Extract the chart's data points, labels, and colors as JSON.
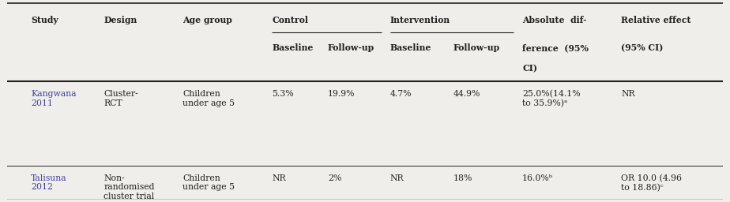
{
  "bg_color": "#f0eeeb",
  "text_color": "#231f20",
  "study_color": "#4040a0",
  "figsize": [
    9.24,
    2.56
  ],
  "dpi": 100,
  "cols": {
    "study": 0.033,
    "design": 0.135,
    "age": 0.245,
    "ctrl_base": 0.37,
    "ctrl_follow": 0.448,
    "int_base": 0.535,
    "int_follow": 0.623,
    "absolute": 0.72,
    "relative": 0.858
  },
  "rows": [
    {
      "study": "Kangwana\n2011",
      "design": "Cluster-\nRCT",
      "age": "Children\nunder age 5",
      "ctrl_baseline": "5.3%",
      "ctrl_followup": "19.9%",
      "int_baseline": "4.7%",
      "int_followup": "44.9%",
      "absolute": "25.0%(14.1%\nto 35.9%)ᵃ",
      "relative": "NR"
    },
    {
      "study": "Talisuna\n2012",
      "design": "Non-\nrandomised\ncluster trial",
      "age": "Children\nunder age 5",
      "ctrl_baseline": "NR",
      "ctrl_followup": "2%",
      "int_baseline": "NR",
      "int_followup": "18%",
      "absolute": "16.0%ᵇ",
      "relative": "OR 10.0 (4.96\nto 18.86)ᶜ"
    }
  ]
}
